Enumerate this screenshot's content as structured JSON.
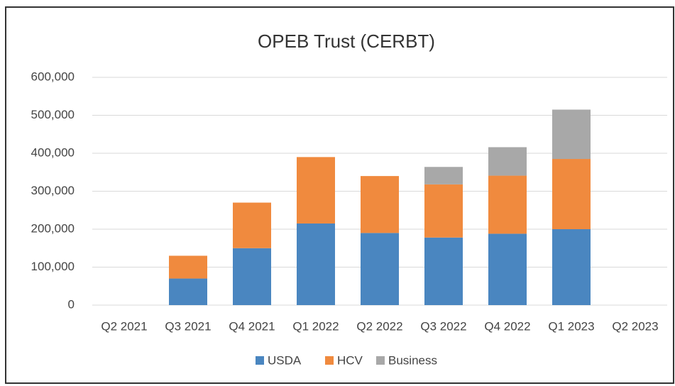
{
  "chart_data": {
    "type": "stacked_bar",
    "title": "OPEB Trust (CERBT)",
    "categories": [
      "Q2 2021",
      "Q3 2021",
      "Q4 2021",
      "Q1 2022",
      "Q2 2022",
      "Q3 2022",
      "Q4 2022",
      "Q1 2023",
      "Q2 2023"
    ],
    "series": [
      {
        "name": "USDA",
        "color": "#4a86c0",
        "values": [
          0,
          70000,
          150000,
          215000,
          190000,
          178000,
          188000,
          200000,
          0
        ]
      },
      {
        "name": "HCV",
        "color": "#f08a3e",
        "values": [
          0,
          60000,
          120000,
          175000,
          150000,
          140000,
          153000,
          185000,
          0
        ]
      },
      {
        "name": "Business",
        "color": "#a8a8a8",
        "values": [
          0,
          0,
          0,
          0,
          0,
          46000,
          75000,
          130000,
          0
        ]
      }
    ],
    "ylim": [
      0,
      600000
    ],
    "yticks": [
      0,
      {
        "value": 100000,
        "label": "100,000"
      },
      {
        "value": 200000,
        "label": "200,000"
      },
      {
        "value": 300000,
        "label": "300,000"
      },
      {
        "value": 400000,
        "label": "400,000"
      },
      {
        "value": 500000,
        "label": "500,000"
      },
      {
        "value": 600000,
        "label": "600,000"
      }
    ],
    "grid": true,
    "legend": "bottom"
  }
}
